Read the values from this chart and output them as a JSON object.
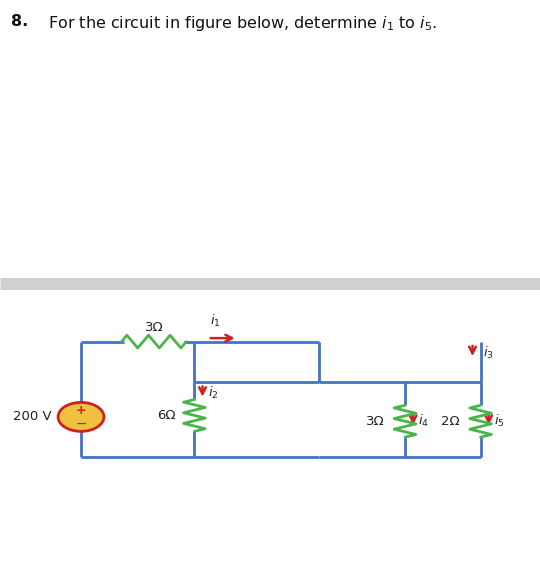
{
  "bg_color": "#ffffff",
  "wire_color": "#4472c4",
  "resistor_color": "#4ab54a",
  "arrow_color": "#cc2222",
  "source_fill_color": "#f0c040",
  "source_edge_color": "#cc2222",
  "divider_color": "#d0d0d0",
  "fig_width": 5.4,
  "fig_height": 5.79,
  "dpi": 100,
  "title_num": "8.",
  "title_body": "  For the circuit in figure below, determine $i_1$ to $i_5$.",
  "label_200V": "200 V",
  "label_3ohm_top": "3Ω",
  "label_6ohm": "6Ω",
  "label_3ohm_mid": "3Ω",
  "label_2ohm": "2Ω",
  "label_i1": "$i_1$",
  "label_i2": "$i_2$",
  "label_i3": "$i_3$",
  "label_i4": "$i_4$",
  "label_i5": "$i_5$"
}
